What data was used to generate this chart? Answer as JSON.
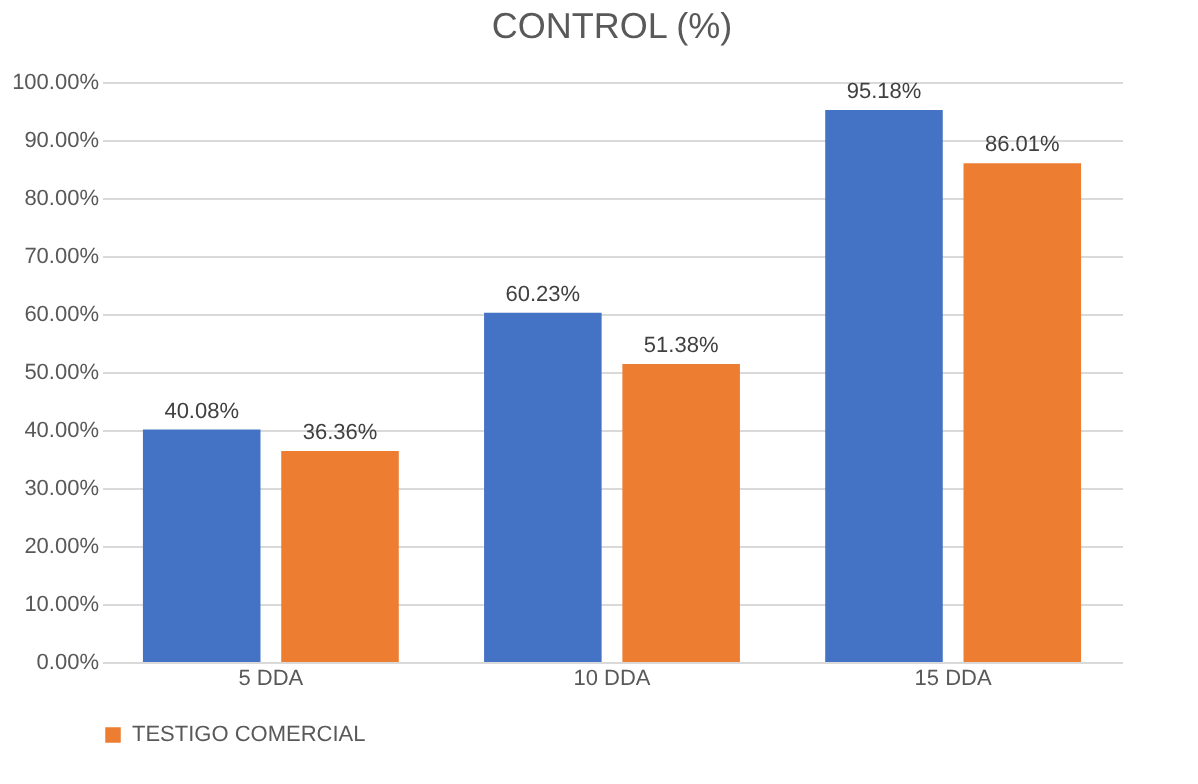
{
  "chart_data": {
    "type": "bar",
    "title": "CONTROL (%)",
    "categories": [
      "5 DDA",
      "10 DDA",
      "15 DDA"
    ],
    "series": [
      {
        "color": "#4472c4",
        "values": [
          40.08,
          60.23,
          95.18
        ],
        "value_labels": [
          "40.08%",
          "60.23%",
          "95.18%"
        ]
      },
      {
        "name": "TESTIGO COMERCIAL",
        "color": "#ed7d31",
        "values": [
          36.36,
          51.38,
          86.01
        ],
        "value_labels": [
          "36.36%",
          "51.38%",
          "86.01%"
        ]
      }
    ],
    "ylim": [
      0,
      100
    ],
    "yticks": [
      {
        "value": 0,
        "label": "0.00%"
      },
      {
        "value": 10,
        "label": "10.00%"
      },
      {
        "value": 20,
        "label": "20.00%"
      },
      {
        "value": 30,
        "label": "30.00%"
      },
      {
        "value": 40,
        "label": "40.00%"
      },
      {
        "value": 50,
        "label": "50.00%"
      },
      {
        "value": 60,
        "label": "60.00%"
      },
      {
        "value": 70,
        "label": "70.00%"
      },
      {
        "value": 80,
        "label": "80.00%"
      },
      {
        "value": 90,
        "label": "90.00%"
      },
      {
        "value": 100,
        "label": "100.00%"
      }
    ],
    "grid": "y",
    "legend": "bottom"
  }
}
